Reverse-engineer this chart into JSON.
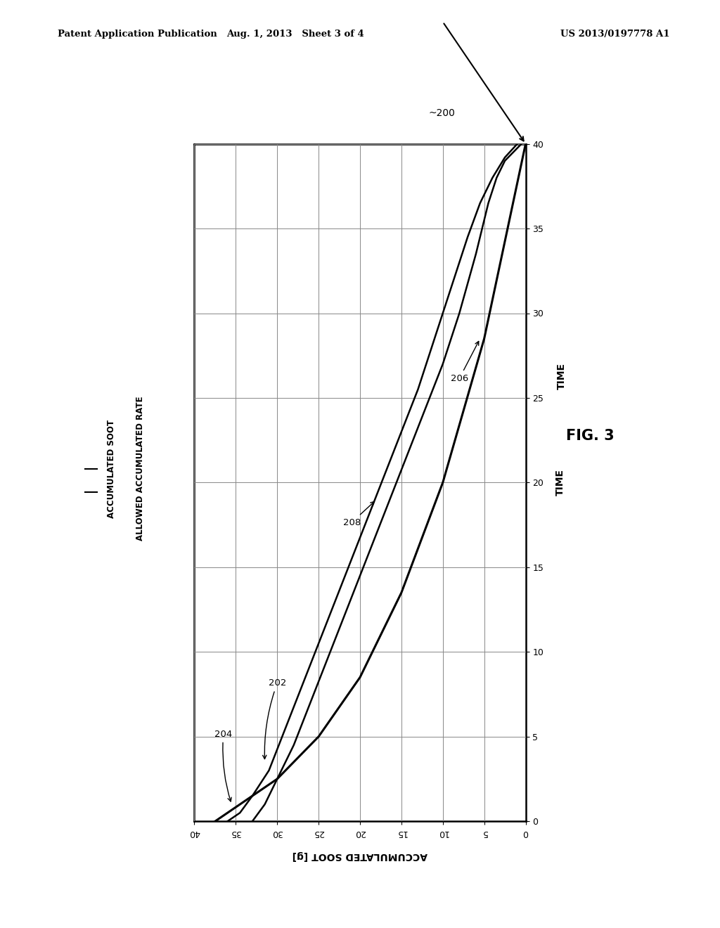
{
  "header_left": "Patent Application Publication",
  "header_mid": "Aug. 1, 2013   Sheet 3 of 4",
  "header_right": "US 2013/0197778 A1",
  "fig_label": "FIG. 3",
  "ref_200": "~200",
  "ref_202": "202",
  "ref_204": "204",
  "ref_206": "206",
  "ref_208": "208",
  "xlabel": "ACCUMULATED SOOT [g]",
  "ylabel_left1": "ACCUMULATED SOOT",
  "ylabel_left2": "ALLOWED ACCUMULATED RATE",
  "ylabel_right": "TIME",
  "xticks": [
    40,
    35,
    30,
    25,
    20,
    15,
    10,
    5,
    0
  ],
  "yticks": [
    0,
    5,
    10,
    15,
    20,
    25,
    30,
    35,
    40
  ],
  "xlim": [
    40,
    0
  ],
  "ylim": [
    0,
    40
  ],
  "background_color": "#ffffff",
  "line_color": "#000000",
  "line202_x": [
    33.0,
    31.5,
    30.0,
    28.0,
    26.0,
    24.0,
    22.0,
    20.0,
    18.0,
    16.0,
    14.0,
    12.0,
    10.0,
    8.0,
    6.0,
    4.5,
    3.5,
    2.5,
    1.5,
    0.5
  ],
  "line202_y": [
    0.0,
    1.0,
    2.5,
    4.5,
    7.0,
    9.5,
    12.0,
    14.5,
    17.0,
    19.5,
    22.0,
    24.5,
    27.0,
    30.0,
    33.5,
    36.5,
    38.0,
    39.0,
    39.5,
    40.0
  ],
  "line204_x": [
    36.0,
    34.5,
    33.0,
    31.0,
    29.0,
    27.0,
    25.0,
    23.0,
    21.0,
    19.0,
    17.0,
    15.0,
    13.0,
    11.0,
    9.0,
    7.0,
    5.5,
    4.0,
    2.5,
    1.0
  ],
  "line204_y": [
    0.0,
    0.5,
    1.5,
    3.0,
    5.5,
    8.0,
    10.5,
    13.0,
    15.5,
    18.0,
    20.5,
    23.0,
    25.5,
    28.5,
    31.5,
    34.5,
    36.5,
    38.0,
    39.2,
    40.0
  ],
  "line206_x": [
    37.5,
    30.0,
    25.0,
    20.0,
    15.0,
    10.0,
    5.0,
    0.0
  ],
  "line206_y": [
    0.0,
    2.5,
    5.0,
    8.5,
    13.5,
    20.0,
    28.5,
    40.0
  ],
  "grid_color": "#888888",
  "font_color": "#000000"
}
